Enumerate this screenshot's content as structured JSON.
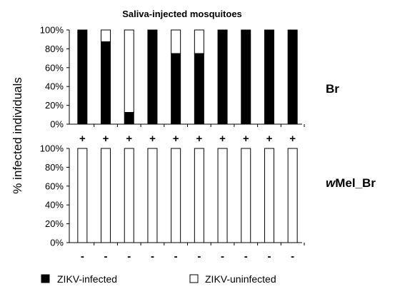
{
  "chart_data": {
    "type": "bar",
    "title": "Saliva-injected mosquitoes",
    "ylabel": "% infected individuals",
    "ylim": [
      0,
      100
    ],
    "yticks": [
      "0%",
      "20%",
      "40%",
      "60%",
      "80%",
      "100%"
    ],
    "stacked": true,
    "grid": false,
    "legend_position": "bottom",
    "legend": [
      {
        "label": "ZIKV-infected",
        "color": "#000000"
      },
      {
        "label": "ZIKV-uninfected",
        "color": "#ffffff"
      }
    ],
    "panels": [
      {
        "label_bold": "Br",
        "label_italic": "",
        "category_symbol": "+",
        "series": [
          {
            "name": "ZIKV-infected",
            "values": [
              100,
              87.5,
              12.5,
              100,
              75,
              75,
              100,
              100,
              100,
              100
            ]
          },
          {
            "name": "ZIKV-uninfected",
            "values": [
              0,
              12.5,
              87.5,
              0,
              25,
              25,
              0,
              0,
              0,
              0
            ]
          }
        ]
      },
      {
        "label_bold": "Mel_Br",
        "label_italic": "w",
        "category_symbol": "-",
        "series": [
          {
            "name": "ZIKV-infected",
            "values": [
              0,
              0,
              0,
              0,
              0,
              0,
              0,
              0,
              0,
              0
            ]
          },
          {
            "name": "ZIKV-uninfected",
            "values": [
              100,
              100,
              100,
              100,
              100,
              100,
              100,
              100,
              100,
              100
            ]
          }
        ]
      }
    ]
  }
}
